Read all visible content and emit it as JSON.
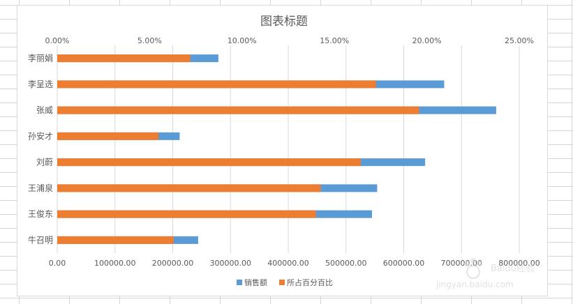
{
  "chart_data": {
    "type": "bar",
    "orientation": "horizontal",
    "stacked": true,
    "title": "图表标题",
    "categories": [
      "李丽娟",
      "李呈选",
      "张威",
      "孙安才",
      "刘蔚",
      "王浦泉",
      "王俊东",
      "牛召明"
    ],
    "series": [
      {
        "name": "所占百分百比",
        "axis": "secondary",
        "color": "#ED7D31",
        "values": [
          0.072,
          0.1725,
          0.1958,
          0.0548,
          0.1642,
          0.1425,
          0.14,
          0.063
        ]
      },
      {
        "name": "销售额",
        "axis": "primary",
        "color": "#5B9BD5",
        "values": [
          279000,
          670000,
          760000,
          212000,
          637000,
          554000,
          545000,
          244000
        ]
      }
    ],
    "primary_axis": {
      "position": "bottom",
      "min": 0,
      "max": 800000,
      "step": 100000,
      "tick_labels": [
        "0.00",
        "100000.00",
        "200000.00",
        "300000.00",
        "400000.00",
        "500000.00",
        "600000.00",
        "700000.00",
        "800000.00"
      ]
    },
    "secondary_axis": {
      "position": "top",
      "min": 0,
      "max": 0.25,
      "step": 0.05,
      "tick_labels": [
        "0.00%",
        "5.00%",
        "10.00%",
        "15.00%",
        "20.00%",
        "25.00%"
      ]
    },
    "grid": true,
    "legend_position": "bottom",
    "legend": [
      "销售额",
      "所占百分百比"
    ]
  },
  "watermark": {
    "logo": "Baidu经验",
    "url": "jingyan.baidu.com"
  }
}
